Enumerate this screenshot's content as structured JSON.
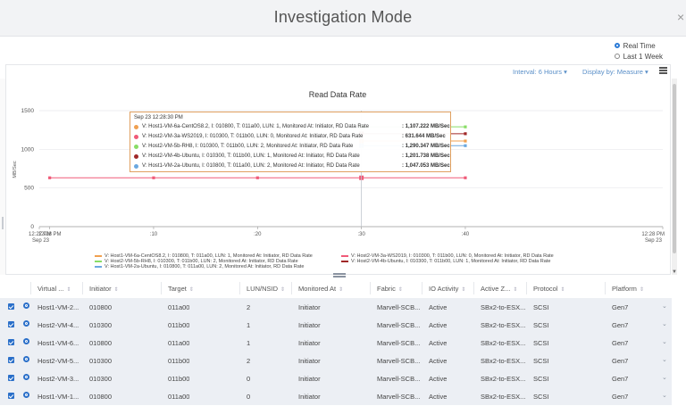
{
  "window": {
    "title": "Investigation Mode",
    "close_glyph": "×"
  },
  "time_mode": {
    "options": [
      "Real Time",
      "Last 1 Week"
    ],
    "selected": "Real Time"
  },
  "toolbar": {
    "interval_label": "Interval: 6 Hours ▾",
    "display_label": "Display by: Measure ▾",
    "menu_icon": "hamburger-icon"
  },
  "chart_data": {
    "type": "line",
    "title": "Read Data Rate",
    "ylabel": "MB/Sec",
    "xlabel": "",
    "ylim": [
      0,
      1500
    ],
    "yticks": [
      0,
      500,
      1000,
      1500
    ],
    "xlim": [
      0,
      60
    ],
    "xticks": [
      {
        "x": 0,
        "label": "12:27 PM",
        "sub": "Sep 23"
      },
      {
        "x": 1,
        "label": "12:28 PM",
        "sub": ""
      },
      {
        "x": 11,
        "label": ":10",
        "sub": ""
      },
      {
        "x": 21,
        "label": ":20",
        "sub": ""
      },
      {
        "x": 31,
        "label": ":30",
        "sub": ""
      },
      {
        "x": 41,
        "label": ":40",
        "sub": ""
      },
      {
        "x": 60,
        "label": "12:28 PM",
        "sub": "Sep 23"
      }
    ],
    "crosshair_x": 31,
    "grid": "horizontal",
    "legend": "bottom",
    "series": [
      {
        "name": "V: Host1-VM-6a-CentOS8.2, I: 010800, T: 011a00, LUN: 1, Monitored At: Initiator, RD Data Rate",
        "color": "#f0a050",
        "marker": "square",
        "x": [
          31,
          41
        ],
        "values": [
          1107.222,
          1107.222
        ]
      },
      {
        "name": "V: Host2-VM-3a-WS2019, I: 010300, T: 011b00, LUN: 0, Monitored At: Initiator, RD Data Rate",
        "color": "#f05a78",
        "marker": "square",
        "x": [
          1,
          11,
          21,
          31,
          41
        ],
        "values": [
          631.644,
          631.644,
          631.644,
          631.644,
          631.644
        ]
      },
      {
        "name": "V: Host2-VM-5b-RH8, I: 010300, T: 011b00, LUN: 2, Monitored At: Initiator, RD Data Rate",
        "color": "#88dd66",
        "marker": "square",
        "x": [
          31,
          41
        ],
        "values": [
          1290.347,
          1290.347
        ]
      },
      {
        "name": "V: Host2-VM-4b-Ubuntu, I: 010300, T: 011b00, LUN: 1, Monitored At: Initiator, RD Data Rate",
        "color": "#a02828",
        "marker": "square",
        "x": [
          31,
          41
        ],
        "values": [
          1201.738,
          1201.738
        ]
      },
      {
        "name": "V: Host1-VM-2a-Ubuntu, I: 010800, T: 011a00, LUN: 2, Monitored At: Initiator, RD Data Rate",
        "color": "#6aa8e0",
        "marker": "square",
        "x": [
          31,
          41
        ],
        "values": [
          1047.053,
          1047.053
        ]
      }
    ],
    "tooltip": {
      "time": "Sep 23 12:28:30 PM",
      "rows": [
        {
          "label": "V: Host1-VM-6a-CentOS8.2, I: 010800, T: 011a00, LUN: 1, Monitored At: Initiator, RD Data Rate",
          "value": ": 1,107.222 MB/Sec",
          "color": "#f0a050"
        },
        {
          "label": "V: Host2-VM-3a-WS2019, I: 010300, T: 011b00, LUN: 0, Monitored At: Initiator, RD Data Rate",
          "value": ": 631.644 MB/Sec",
          "color": "#f05a78"
        },
        {
          "label": "V: Host2-VM-5b-RH8, I: 010300, T: 011b00, LUN: 2, Monitored At: Initiator, RD Data Rate",
          "value": ": 1,290.347 MB/Sec",
          "color": "#88dd66"
        },
        {
          "label": "V: Host2-VM-4b-Ubuntu, I: 010300, T: 011b00, LUN: 1, Monitored At: Initiator, RD Data Rate",
          "value": ": 1,201.738 MB/Sec",
          "color": "#a02828"
        },
        {
          "label": "V: Host1-VM-2a-Ubuntu, I: 010800, T: 011a00, LUN: 2, Monitored At: Initiator, RD Data Rate",
          "value": ": 1,047.053 MB/Sec",
          "color": "#6aa8e0"
        }
      ]
    }
  },
  "table": {
    "columns": [
      "Virtual ...",
      "Initiator",
      "Target",
      "LUN/NSID",
      "Monitored At",
      "Fabric",
      "IO Activity",
      "Active Z...",
      "Protocol",
      "Platform"
    ],
    "sort_glyph": "⇕",
    "row_chevron": "⌄",
    "rows": [
      [
        "Host1-VM-2...",
        "010800",
        "011a00",
        "2",
        "Initiator",
        "Marvell-SCB...",
        "Active",
        "SBx2-to-ESX...",
        "SCSI",
        "Gen7"
      ],
      [
        "Host2-VM-4...",
        "010300",
        "011b00",
        "1",
        "Initiator",
        "Marvell-SCB...",
        "Active",
        "SBx2-to-ESX...",
        "SCSI",
        "Gen7"
      ],
      [
        "Host1-VM-6...",
        "010800",
        "011a00",
        "1",
        "Initiator",
        "Marvell-SCB...",
        "Active",
        "SBx2-to-ESX...",
        "SCSI",
        "Gen7"
      ],
      [
        "Host2-VM-5...",
        "010300",
        "011b00",
        "2",
        "Initiator",
        "Marvell-SCB...",
        "Active",
        "SBx2-to-ESX...",
        "SCSI",
        "Gen7"
      ],
      [
        "Host2-VM-3...",
        "010300",
        "011b00",
        "0",
        "Initiator",
        "Marvell-SCB...",
        "Active",
        "SBx2-to-ESX...",
        "SCSI",
        "Gen7"
      ],
      [
        "Host1-VM-1...",
        "010800",
        "011a00",
        "0",
        "Initiator",
        "Marvell-SCB...",
        "Active",
        "SBx2-to-ESX...",
        "SCSI",
        "Gen7"
      ]
    ]
  }
}
